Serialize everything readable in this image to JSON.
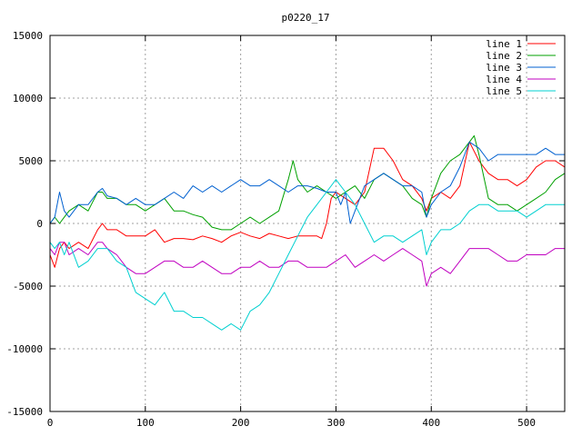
{
  "chart_data": {
    "type": "line",
    "title": "p0220_17",
    "xlabel": "",
    "ylabel": "",
    "xlim": [
      0,
      540
    ],
    "ylim": [
      -15000,
      15000
    ],
    "xticks": [
      0,
      100,
      200,
      300,
      400,
      500
    ],
    "yticks": [
      -15000,
      -10000,
      -5000,
      0,
      5000,
      10000,
      15000
    ],
    "grid": true,
    "legend_position": "top-right",
    "series": [
      {
        "name": "line 1",
        "color": "#ff0000",
        "x": [
          0,
          5,
          10,
          15,
          20,
          30,
          40,
          50,
          55,
          60,
          70,
          80,
          90,
          100,
          110,
          120,
          130,
          140,
          150,
          160,
          170,
          180,
          190,
          200,
          210,
          220,
          230,
          240,
          250,
          260,
          270,
          280,
          285,
          290,
          295,
          300,
          310,
          320,
          330,
          340,
          350,
          360,
          370,
          380,
          390,
          395,
          400,
          410,
          420,
          430,
          440,
          450,
          460,
          470,
          480,
          490,
          500,
          510,
          520,
          530,
          540
        ],
        "values": [
          -2500,
          -3500,
          -2000,
          -1500,
          -2000,
          -1500,
          -2000,
          -500,
          0,
          -500,
          -500,
          -1000,
          -1000,
          -1000,
          -500,
          -1500,
          -1200,
          -1200,
          -1300,
          -1000,
          -1200,
          -1500,
          -1000,
          -700,
          -1000,
          -1200,
          -800,
          -1000,
          -1200,
          -1000,
          -1000,
          -1000,
          -1200,
          0,
          2000,
          2500,
          2000,
          1500,
          2500,
          6000,
          6000,
          5000,
          3500,
          3000,
          2000,
          1000,
          2000,
          2500,
          2000,
          3000,
          6500,
          5000,
          4000,
          3500,
          3500,
          3000,
          3500,
          4500,
          5000,
          5000,
          4500
        ]
      },
      {
        "name": "line 2",
        "color": "#00a000",
        "x": [
          0,
          5,
          10,
          15,
          20,
          30,
          40,
          50,
          55,
          60,
          70,
          80,
          90,
          100,
          110,
          120,
          130,
          140,
          150,
          160,
          170,
          180,
          190,
          200,
          210,
          220,
          230,
          240,
          250,
          255,
          260,
          270,
          280,
          290,
          300,
          310,
          320,
          330,
          340,
          350,
          360,
          370,
          380,
          390,
          395,
          400,
          410,
          420,
          430,
          440,
          445,
          450,
          460,
          470,
          480,
          490,
          500,
          510,
          520,
          530,
          540
        ],
        "values": [
          0,
          500,
          0,
          500,
          1000,
          1500,
          1000,
          2500,
          2500,
          2000,
          2000,
          1500,
          1500,
          1000,
          1500,
          2000,
          1000,
          1000,
          700,
          500,
          -300,
          -500,
          -500,
          0,
          500,
          0,
          500,
          1000,
          3500,
          5000,
          3500,
          2500,
          3000,
          2500,
          2000,
          2500,
          3000,
          2000,
          3500,
          4000,
          3500,
          3000,
          2000,
          1500,
          500,
          2000,
          4000,
          5000,
          5500,
          6500,
          7000,
          5500,
          2000,
          1500,
          1500,
          1000,
          1500,
          2000,
          2500,
          3500,
          4000
        ]
      },
      {
        "name": "line 3",
        "color": "#0060d0",
        "x": [
          0,
          5,
          10,
          15,
          20,
          30,
          40,
          50,
          55,
          60,
          70,
          80,
          90,
          100,
          110,
          120,
          130,
          140,
          150,
          160,
          170,
          180,
          190,
          200,
          210,
          220,
          230,
          240,
          250,
          260,
          270,
          280,
          290,
          300,
          305,
          310,
          315,
          320,
          330,
          340,
          350,
          360,
          370,
          380,
          390,
          395,
          400,
          410,
          420,
          430,
          440,
          450,
          460,
          470,
          480,
          490,
          500,
          510,
          520,
          530,
          540
        ],
        "values": [
          0,
          500,
          2500,
          1000,
          500,
          1500,
          1500,
          2500,
          2800,
          2200,
          2000,
          1500,
          2000,
          1500,
          1500,
          2000,
          2500,
          2000,
          3000,
          2500,
          3000,
          2500,
          3000,
          3500,
          3000,
          3000,
          3500,
          3000,
          2500,
          3000,
          3000,
          2800,
          2500,
          2500,
          1500,
          2500,
          0,
          1000,
          3000,
          3500,
          4000,
          3500,
          3000,
          3000,
          2500,
          500,
          1500,
          2500,
          3000,
          4500,
          6500,
          6000,
          5000,
          5500,
          5500,
          5500,
          5500,
          5500,
          6000,
          5500,
          5500
        ]
      },
      {
        "name": "line 4",
        "color": "#c000c0",
        "x": [
          0,
          5,
          10,
          15,
          20,
          30,
          40,
          50,
          55,
          60,
          70,
          80,
          90,
          100,
          110,
          120,
          130,
          140,
          150,
          160,
          170,
          180,
          190,
          200,
          210,
          220,
          230,
          240,
          250,
          260,
          270,
          280,
          290,
          300,
          310,
          320,
          330,
          340,
          350,
          360,
          370,
          380,
          390,
          395,
          400,
          410,
          420,
          430,
          440,
          450,
          460,
          470,
          480,
          490,
          500,
          510,
          520,
          530,
          540
        ],
        "values": [
          -2000,
          -2500,
          -1500,
          -1500,
          -2500,
          -2000,
          -2500,
          -1500,
          -1500,
          -2000,
          -2500,
          -3500,
          -4000,
          -4000,
          -3500,
          -3000,
          -3000,
          -3500,
          -3500,
          -3000,
          -3500,
          -4000,
          -4000,
          -3500,
          -3500,
          -3000,
          -3500,
          -3500,
          -3000,
          -3000,
          -3500,
          -3500,
          -3500,
          -3000,
          -2500,
          -3500,
          -3000,
          -2500,
          -3000,
          -2500,
          -2000,
          -2500,
          -3000,
          -5000,
          -4000,
          -3500,
          -4000,
          -3000,
          -2000,
          -2000,
          -2000,
          -2500,
          -3000,
          -3000,
          -2500,
          -2500,
          -2500,
          -2000,
          -2000
        ]
      },
      {
        "name": "line 5",
        "color": "#00d0d0",
        "x": [
          0,
          5,
          10,
          15,
          20,
          30,
          40,
          50,
          60,
          70,
          80,
          90,
          100,
          110,
          120,
          130,
          140,
          150,
          160,
          170,
          180,
          190,
          200,
          210,
          220,
          230,
          240,
          250,
          260,
          270,
          280,
          290,
          300,
          310,
          320,
          330,
          340,
          350,
          360,
          370,
          380,
          390,
          395,
          400,
          410,
          420,
          430,
          440,
          450,
          460,
          470,
          480,
          490,
          500,
          510,
          520,
          530,
          540
        ],
        "values": [
          -1500,
          -2000,
          -1500,
          -2500,
          -1500,
          -3500,
          -3000,
          -2000,
          -2000,
          -3000,
          -3500,
          -5500,
          -6000,
          -6500,
          -5500,
          -7000,
          -7000,
          -7500,
          -7500,
          -8000,
          -8500,
          -8000,
          -8500,
          -7000,
          -6500,
          -5500,
          -4000,
          -2500,
          -1000,
          500,
          1500,
          2500,
          3500,
          2500,
          1500,
          0,
          -1500,
          -1000,
          -1000,
          -1500,
          -1000,
          -500,
          -2500,
          -1500,
          -500,
          -500,
          0,
          1000,
          1500,
          1500,
          1000,
          1000,
          1000,
          500,
          1000,
          1500,
          1500,
          1500
        ]
      }
    ]
  }
}
